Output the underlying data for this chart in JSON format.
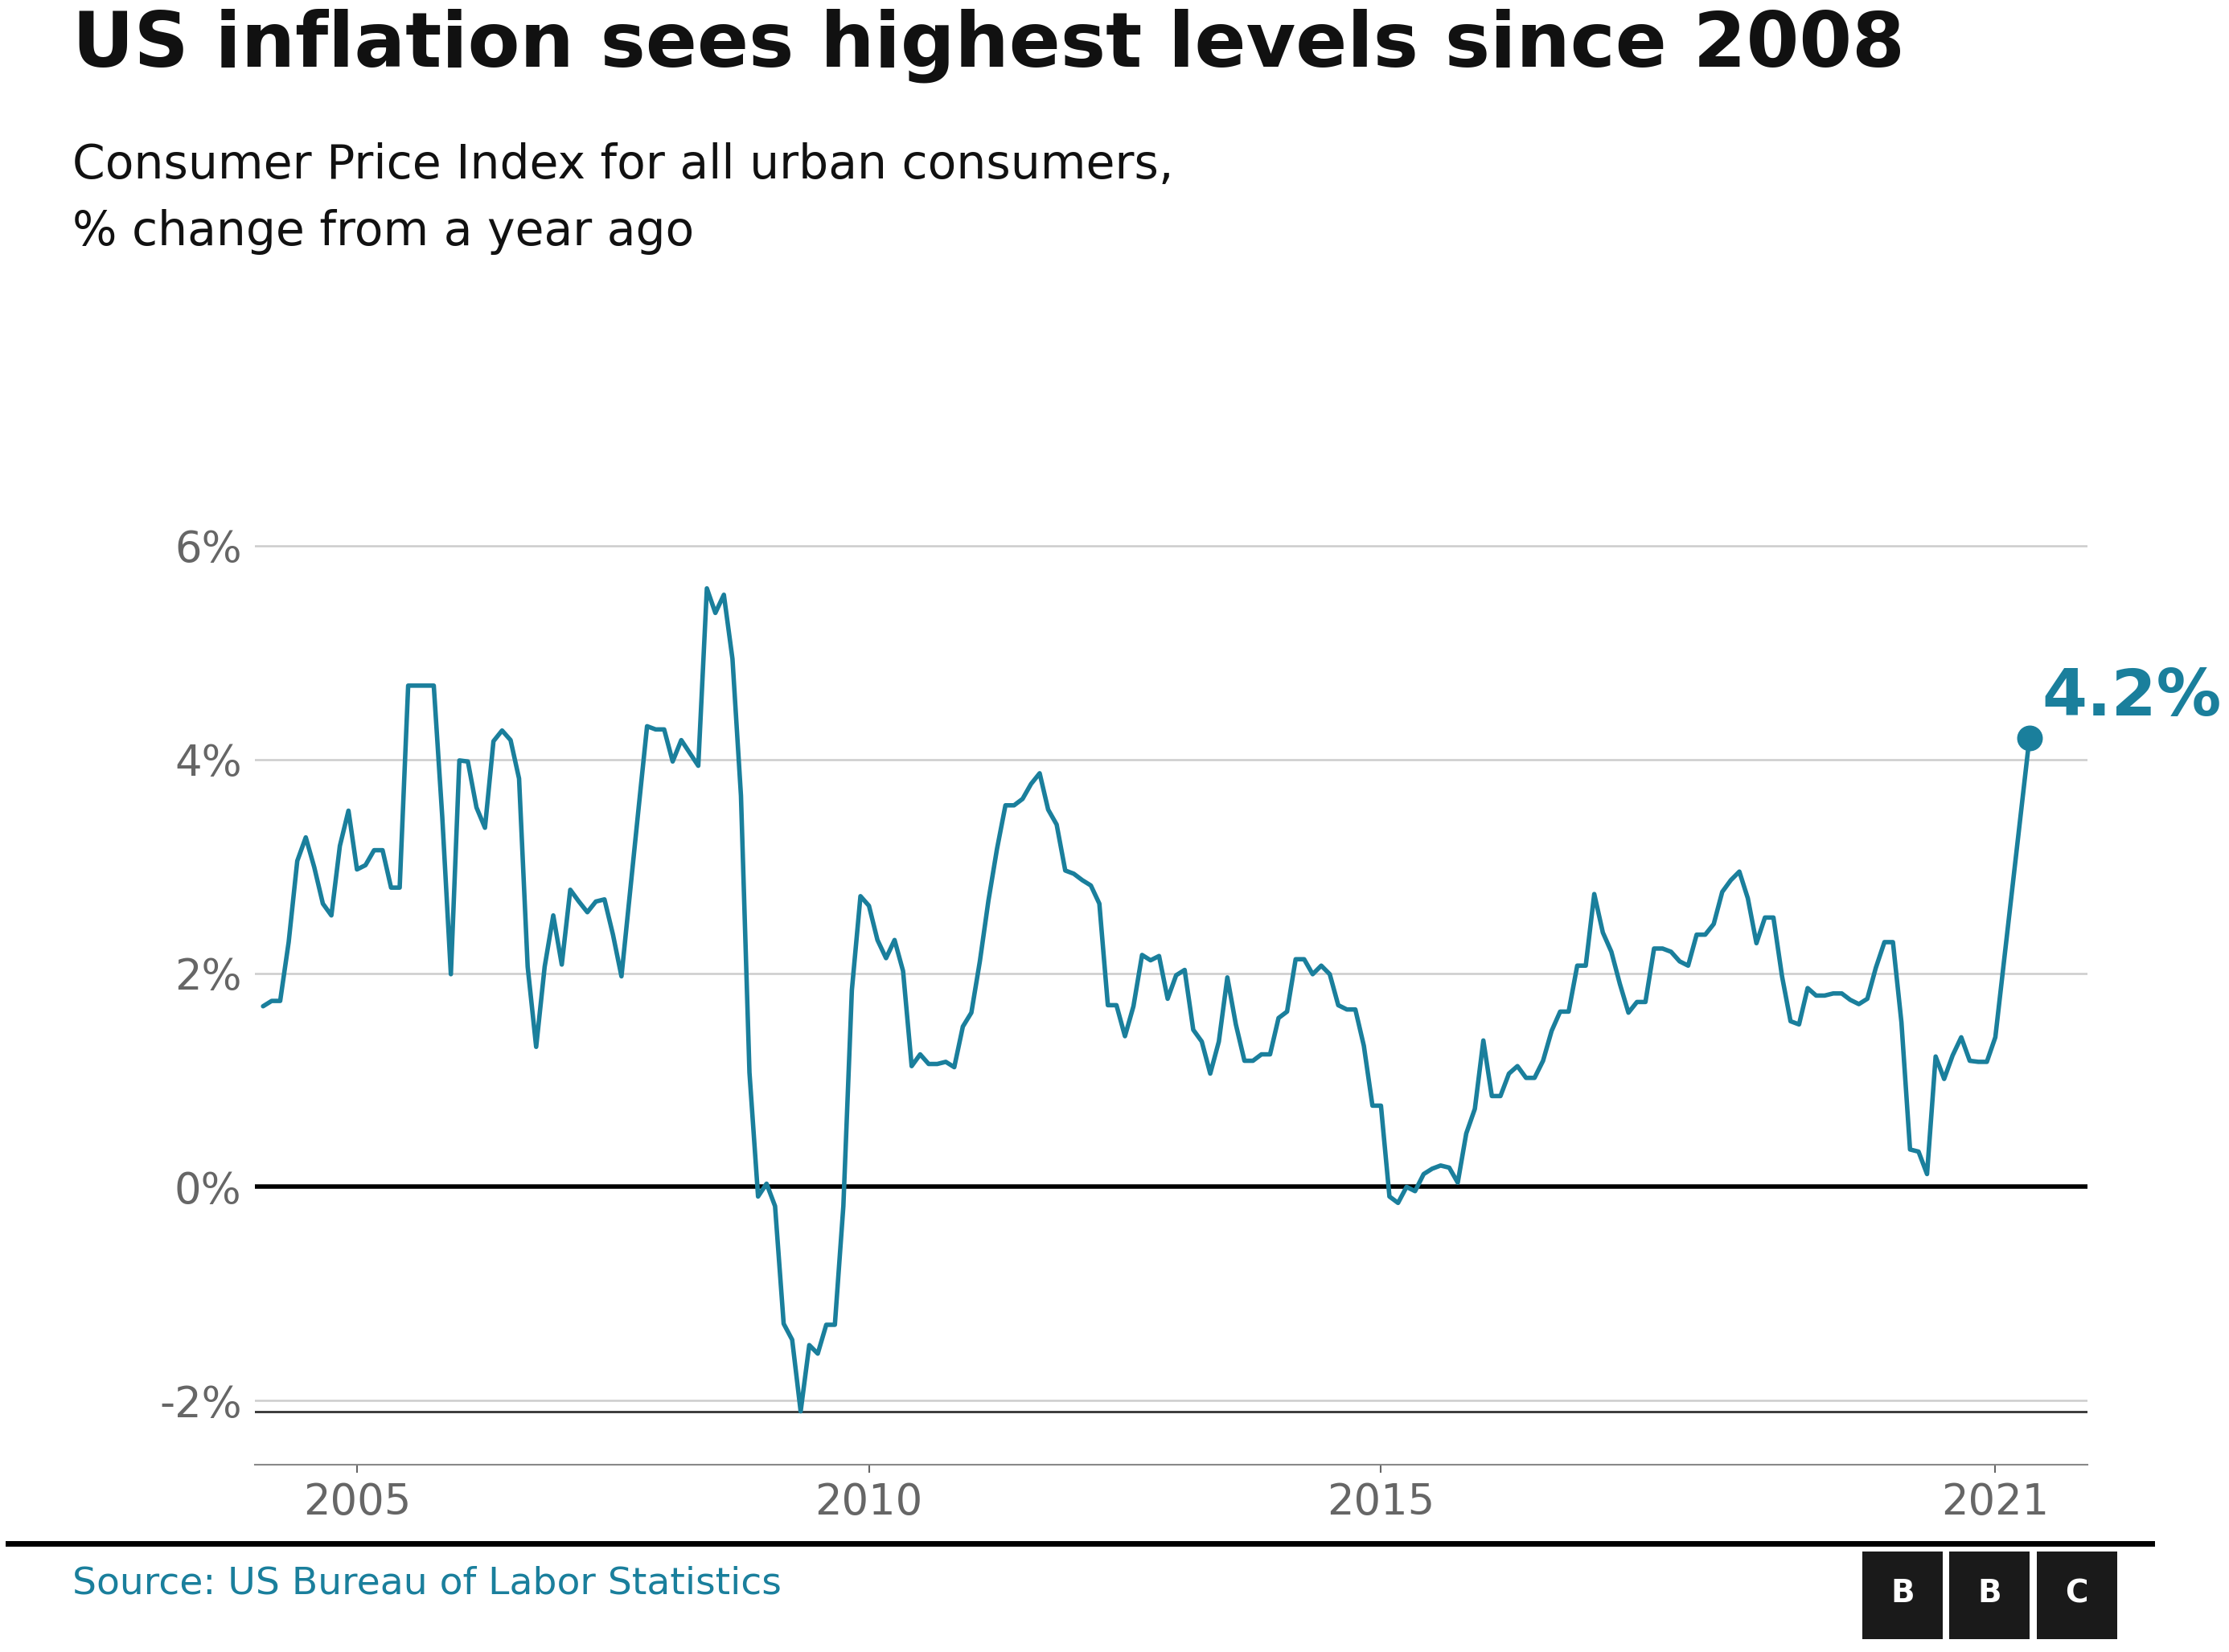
{
  "title": "US inflation sees highest levels since 2008",
  "subtitle_line1": "Consumer Price Index for all urban consumers,",
  "subtitle_line2": "% change from a year ago",
  "source": "Source: US Bureau of Labor Statistics",
  "line_color": "#1a7f9c",
  "zero_line_color": "#000000",
  "bottom_line_color": "#333333",
  "grid_color": "#cccccc",
  "background_color": "#ffffff",
  "annotation_value": "4.2%",
  "annotation_color": "#1a7f9c",
  "ylim": [
    -2.6,
    6.8
  ],
  "yticks": [
    -2,
    0,
    2,
    4,
    6
  ],
  "ytick_labels": [
    "-2%",
    "0%",
    "2%",
    "4%",
    "6%"
  ],
  "xtick_positions": [
    2005,
    2010,
    2015,
    2021
  ],
  "xtick_labels": [
    "2005",
    "2010",
    "2015",
    "2021"
  ],
  "title_fontsize": 68,
  "subtitle_fontsize": 42,
  "tick_fontsize": 38,
  "annotation_fontsize": 58,
  "source_fontsize": 34,
  "dates": [
    2004.083,
    2004.167,
    2004.25,
    2004.333,
    2004.417,
    2004.5,
    2004.583,
    2004.667,
    2004.75,
    2004.833,
    2004.917,
    2005.0,
    2005.083,
    2005.167,
    2005.25,
    2005.333,
    2005.417,
    2005.5,
    2005.583,
    2005.667,
    2005.75,
    2005.833,
    2005.917,
    2006.0,
    2006.083,
    2006.167,
    2006.25,
    2006.333,
    2006.417,
    2006.5,
    2006.583,
    2006.667,
    2006.75,
    2006.833,
    2006.917,
    2007.0,
    2007.083,
    2007.167,
    2007.25,
    2007.333,
    2007.417,
    2007.5,
    2007.583,
    2007.667,
    2007.75,
    2007.833,
    2007.917,
    2008.0,
    2008.083,
    2008.167,
    2008.25,
    2008.333,
    2008.417,
    2008.5,
    2008.583,
    2008.667,
    2008.75,
    2008.833,
    2008.917,
    2009.0,
    2009.083,
    2009.167,
    2009.25,
    2009.333,
    2009.417,
    2009.5,
    2009.583,
    2009.667,
    2009.75,
    2009.833,
    2009.917,
    2010.0,
    2010.083,
    2010.167,
    2010.25,
    2010.333,
    2010.417,
    2010.5,
    2010.583,
    2010.667,
    2010.75,
    2010.833,
    2010.917,
    2011.0,
    2011.083,
    2011.167,
    2011.25,
    2011.333,
    2011.417,
    2011.5,
    2011.583,
    2011.667,
    2011.75,
    2011.833,
    2011.917,
    2012.0,
    2012.083,
    2012.167,
    2012.25,
    2012.333,
    2012.417,
    2012.5,
    2012.583,
    2012.667,
    2012.75,
    2012.833,
    2012.917,
    2013.0,
    2013.083,
    2013.167,
    2013.25,
    2013.333,
    2013.417,
    2013.5,
    2013.583,
    2013.667,
    2013.75,
    2013.833,
    2013.917,
    2014.0,
    2014.083,
    2014.167,
    2014.25,
    2014.333,
    2014.417,
    2014.5,
    2014.583,
    2014.667,
    2014.75,
    2014.833,
    2014.917,
    2015.0,
    2015.083,
    2015.167,
    2015.25,
    2015.333,
    2015.417,
    2015.5,
    2015.583,
    2015.667,
    2015.75,
    2015.833,
    2015.917,
    2016.0,
    2016.083,
    2016.167,
    2016.25,
    2016.333,
    2016.417,
    2016.5,
    2016.583,
    2016.667,
    2016.75,
    2016.833,
    2016.917,
    2017.0,
    2017.083,
    2017.167,
    2017.25,
    2017.333,
    2017.417,
    2017.5,
    2017.583,
    2017.667,
    2017.75,
    2017.833,
    2017.917,
    2018.0,
    2018.083,
    2018.167,
    2018.25,
    2018.333,
    2018.417,
    2018.5,
    2018.583,
    2018.667,
    2018.75,
    2018.833,
    2018.917,
    2019.0,
    2019.083,
    2019.167,
    2019.25,
    2019.333,
    2019.417,
    2019.5,
    2019.583,
    2019.667,
    2019.75,
    2019.833,
    2019.917,
    2020.0,
    2020.083,
    2020.167,
    2020.25,
    2020.333,
    2020.417,
    2020.5,
    2020.583,
    2020.667,
    2020.75,
    2020.833,
    2020.917,
    2021.0,
    2021.333
  ],
  "values": [
    1.69,
    1.74,
    1.74,
    2.29,
    3.05,
    3.27,
    2.99,
    2.65,
    2.54,
    3.19,
    3.52,
    2.97,
    3.01,
    3.15,
    3.15,
    2.8,
    2.8,
    4.69,
    4.69,
    4.69,
    4.69,
    3.46,
    1.99,
    3.99,
    3.98,
    3.55,
    3.36,
    4.17,
    4.27,
    4.18,
    3.82,
    2.06,
    1.31,
    2.06,
    2.54,
    2.08,
    2.78,
    2.67,
    2.57,
    2.67,
    2.69,
    2.36,
    1.97,
    2.76,
    3.54,
    4.31,
    4.28,
    4.28,
    3.98,
    4.18,
    4.06,
    3.94,
    5.6,
    5.37,
    5.54,
    4.94,
    3.66,
    1.07,
    -0.09,
    0.03,
    -0.18,
    -1.28,
    -1.43,
    -2.1,
    -1.48,
    -1.56,
    -1.29,
    -1.29,
    -0.18,
    1.84,
    2.72,
    2.63,
    2.31,
    2.14,
    2.31,
    2.02,
    1.13,
    1.24,
    1.15,
    1.15,
    1.17,
    1.12,
    1.5,
    1.63,
    2.11,
    2.68,
    3.16,
    3.57,
    3.57,
    3.63,
    3.77,
    3.87,
    3.53,
    3.39,
    2.96,
    2.93,
    2.87,
    2.82,
    2.65,
    1.7,
    1.7,
    1.41,
    1.69,
    2.17,
    2.12,
    2.16,
    1.76,
    1.98,
    2.03,
    1.47,
    1.36,
    1.06,
    1.36,
    1.96,
    1.52,
    1.18,
    1.18,
    1.24,
    1.24,
    1.58,
    1.64,
    2.13,
    2.13,
    1.99,
    2.07,
    1.99,
    1.7,
    1.66,
    1.66,
    1.32,
    0.76,
    0.76,
    -0.09,
    -0.15,
    0.0,
    -0.04,
    0.12,
    0.17,
    0.2,
    0.18,
    0.04,
    0.5,
    0.73,
    1.37,
    0.85,
    0.85,
    1.06,
    1.13,
    1.02,
    1.02,
    1.18,
    1.46,
    1.64,
    1.64,
    2.07,
    2.07,
    2.74,
    2.38,
    2.2,
    1.9,
    1.63,
    1.73,
    1.73,
    2.23,
    2.23,
    2.2,
    2.11,
    2.07,
    2.36,
    2.36,
    2.46,
    2.76,
    2.87,
    2.95,
    2.7,
    2.28,
    2.52,
    2.52,
    1.97,
    1.55,
    1.52,
    1.86,
    1.79,
    1.79,
    1.81,
    1.81,
    1.75,
    1.71,
    1.76,
    2.05,
    2.29,
    2.29,
    1.54,
    0.35,
    0.33,
    0.12,
    1.22,
    1.01,
    1.23,
    1.4,
    1.18,
    1.17,
    1.17,
    1.4,
    4.2
  ]
}
